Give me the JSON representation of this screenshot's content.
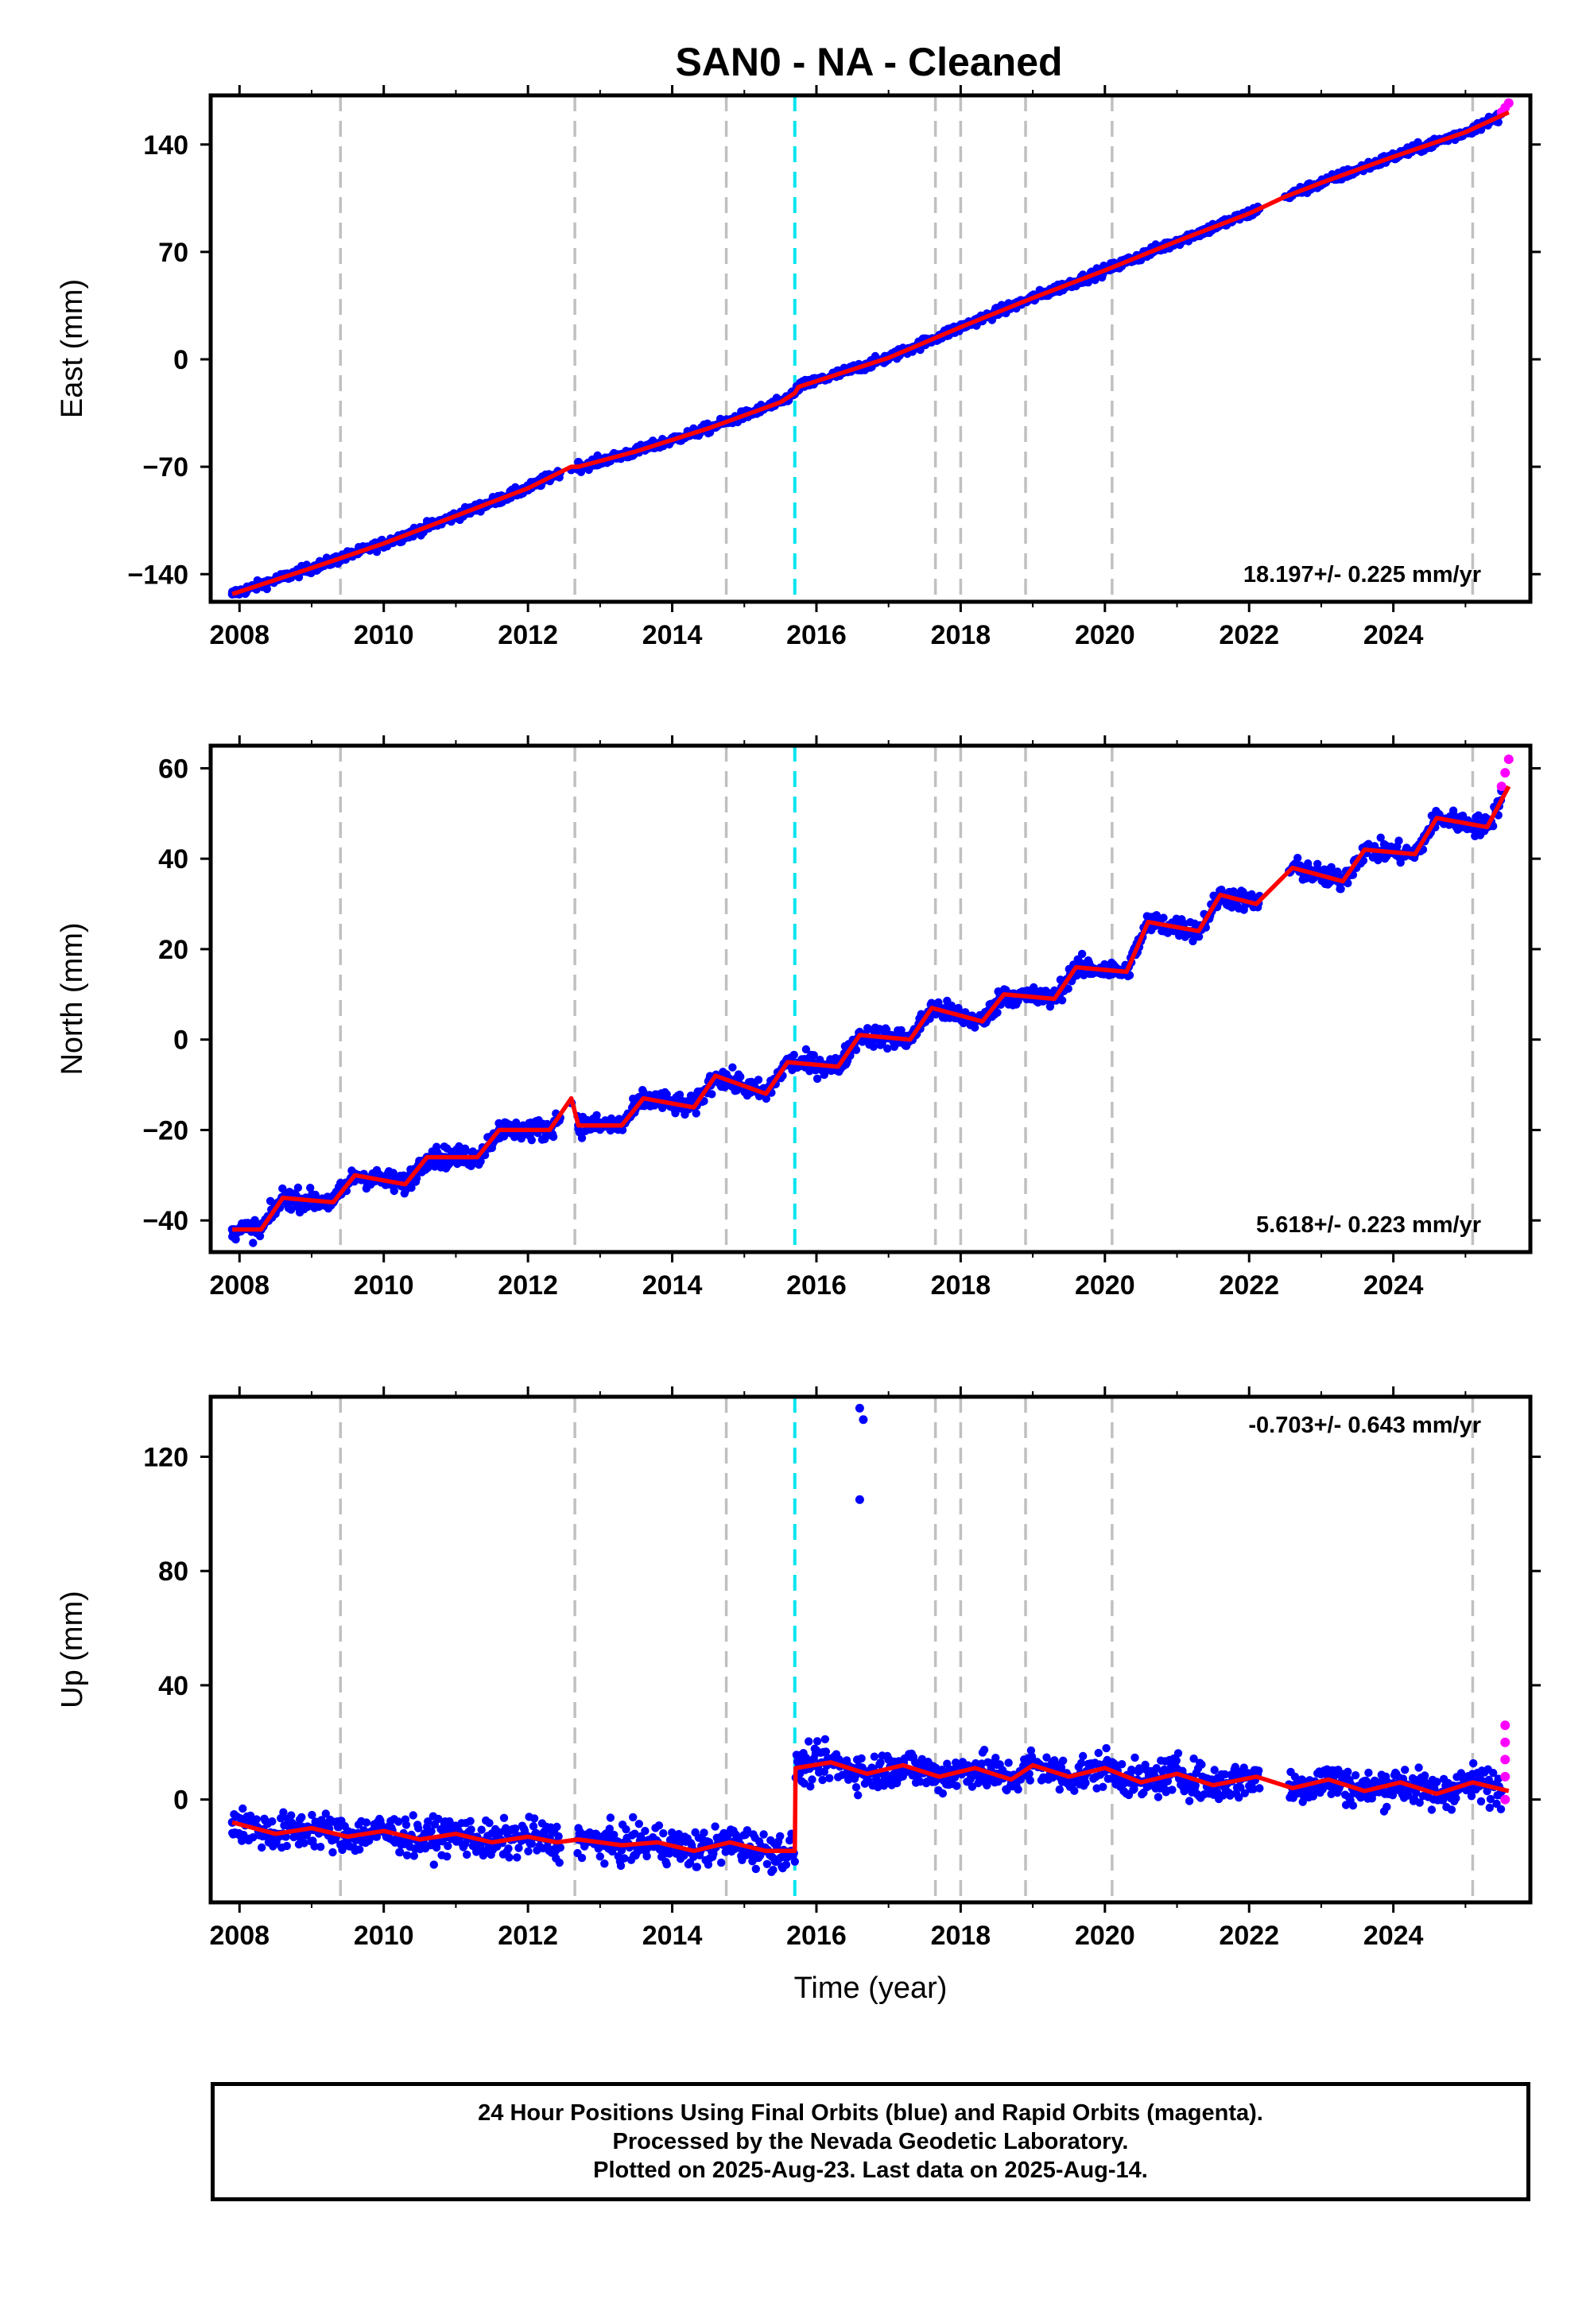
{
  "title": "SAN0  - NA - Cleaned",
  "colors": {
    "final_points": "#0000ff",
    "rapid_points": "#ff00ff",
    "model": "#ff0000",
    "antenna_change": "#c0c0c0",
    "equipment_change": "#00e5ee"
  },
  "footer": {
    "line1": "24 Hour Positions Using Final Orbits (blue) and Rapid Orbits (magenta).",
    "line2": "Processed by the Nevada Geodetic Laboratory.",
    "line3": "Plotted on 2025-Aug-23. Last data on 2025-Aug-14."
  },
  "chart_data": [
    {
      "type": "scatter",
      "ylabel": "East (mm)",
      "xlabel": "",
      "xlim": [
        2007.6,
        2025.9
      ],
      "ylim": [
        -158,
        172
      ],
      "xticks": [
        "2008",
        "2010",
        "2012",
        "2014",
        "2016",
        "2018",
        "2020",
        "2022",
        "2024"
      ],
      "yticks": [
        "140",
        "70",
        "0",
        "−70",
        "−140"
      ],
      "ytick_values": [
        140,
        70,
        0,
        -70,
        -140
      ],
      "rate_label": "18.197+/- 0.225 mm/yr",
      "rate_position": "bottom-right",
      "series": [
        {
          "name": "Final Orbits",
          "color": "blue",
          "x": [
            2007.9,
            2009.0,
            2010.0,
            2011.0,
            2012.0,
            2012.6,
            2012.7,
            2013.5,
            2014.5,
            2015.5,
            2015.7,
            2015.75,
            2017.0,
            2018.0,
            2019.0,
            2020.0,
            2021.0,
            2022.0,
            2022.5,
            2023.0,
            2024.0,
            2025.0,
            2025.5
          ],
          "y": [
            -153,
            -136,
            -120,
            -102,
            -84,
            -72,
            -67,
            -58,
            -45,
            -28,
            -22,
            -18,
            1,
            21,
            40,
            58,
            77,
            95,
            106,
            115,
            132,
            148,
            160
          ]
        },
        {
          "name": "Rapid Orbits",
          "color": "magenta",
          "x": [
            2025.5,
            2025.55,
            2025.6
          ],
          "y": [
            161,
            164,
            167
          ]
        },
        {
          "name": "Model",
          "color": "red",
          "x": [
            2007.9,
            2009.0,
            2010.0,
            2011.0,
            2012.0,
            2012.6,
            2012.7,
            2013.5,
            2014.5,
            2015.5,
            2015.7,
            2015.75,
            2017.0,
            2018.0,
            2019.0,
            2020.0,
            2021.0,
            2022.0,
            2022.5,
            2023.0,
            2024.0,
            2025.0,
            2025.6
          ],
          "y": [
            -153,
            -136,
            -120,
            -102,
            -84,
            -70,
            -70,
            -60,
            -45,
            -28,
            -22,
            -18,
            1,
            21,
            40,
            58,
            77,
            95,
            106,
            115,
            132,
            148,
            161
          ]
        }
      ],
      "vlines_gray": [
        2009.4,
        2012.65,
        2014.75,
        2017.65,
        2018.0,
        2018.9,
        2020.1,
        2025.1
      ],
      "vlines_cyan": [
        2015.7
      ]
    },
    {
      "type": "scatter",
      "ylabel": "North (mm)",
      "xlabel": "",
      "xlim": [
        2007.6,
        2025.9
      ],
      "ylim": [
        -47,
        65
      ],
      "xticks": [
        "2008",
        "2010",
        "2012",
        "2014",
        "2016",
        "2018",
        "2020",
        "2022",
        "2024"
      ],
      "yticks": [
        "60",
        "40",
        "20",
        "0",
        "−20",
        "−40"
      ],
      "ytick_values": [
        60,
        40,
        20,
        0,
        -20,
        -40
      ],
      "rate_label": "5.618+/- 0.223 mm/yr",
      "rate_position": "bottom-right",
      "series": [
        {
          "name": "Final Orbits",
          "color": "blue",
          "x": [
            2007.9,
            2008.3,
            2008.6,
            2009.3,
            2009.6,
            2010.3,
            2010.6,
            2011.3,
            2011.6,
            2012.3,
            2012.6,
            2012.7,
            2013.3,
            2013.6,
            2014.3,
            2014.6,
            2015.3,
            2015.6,
            2016.3,
            2016.6,
            2017.3,
            2017.6,
            2018.3,
            2018.6,
            2019.3,
            2019.6,
            2020.3,
            2020.6,
            2021.3,
            2021.6,
            2022.1,
            2022.6,
            2023.3,
            2023.6,
            2024.3,
            2024.6,
            2025.3,
            2025.5
          ],
          "y": [
            -42,
            -42,
            -35,
            -36,
            -30,
            -32,
            -26,
            -26,
            -20,
            -20,
            -14,
            -19,
            -19,
            -13,
            -15,
            -8,
            -12,
            -5,
            -6,
            1,
            0,
            7,
            4,
            10,
            9,
            16,
            15,
            26,
            24,
            32,
            30,
            38,
            35,
            42,
            41,
            49,
            47,
            55
          ]
        },
        {
          "name": "Rapid Orbits",
          "color": "magenta",
          "x": [
            2025.5,
            2025.55,
            2025.6
          ],
          "y": [
            56,
            59,
            62
          ]
        },
        {
          "name": "Model",
          "color": "red",
          "x": [
            2007.9,
            2008.3,
            2008.6,
            2009.3,
            2009.6,
            2010.3,
            2010.6,
            2011.3,
            2011.6,
            2012.3,
            2012.6,
            2012.7,
            2013.3,
            2013.6,
            2014.3,
            2014.6,
            2015.3,
            2015.6,
            2016.3,
            2016.6,
            2017.3,
            2017.6,
            2018.3,
            2018.6,
            2019.3,
            2019.6,
            2020.3,
            2020.6,
            2021.3,
            2021.6,
            2022.1,
            2022.6,
            2023.3,
            2023.6,
            2024.3,
            2024.6,
            2025.3,
            2025.6
          ],
          "y": [
            -42,
            -42,
            -35,
            -36,
            -30,
            -32,
            -26,
            -26,
            -20,
            -20,
            -13,
            -19,
            -19,
            -13,
            -15,
            -8,
            -12,
            -5,
            -6,
            1,
            0,
            7,
            4,
            10,
            9,
            16,
            15,
            26,
            24,
            32,
            30,
            38,
            35,
            42,
            41,
            49,
            47,
            56
          ]
        }
      ],
      "vlines_gray": [
        2009.4,
        2012.65,
        2014.75,
        2017.65,
        2018.0,
        2018.9,
        2020.1,
        2025.1
      ],
      "vlines_cyan": [
        2015.7
      ]
    },
    {
      "type": "scatter",
      "ylabel": "Up (mm)",
      "xlabel": "Time (year)",
      "xlim": [
        2007.6,
        2025.9
      ],
      "ylim": [
        -36,
        141
      ],
      "xticks": [
        "2008",
        "2010",
        "2012",
        "2014",
        "2016",
        "2018",
        "2020",
        "2022",
        "2024"
      ],
      "yticks": [
        "120",
        "80",
        "40",
        "0"
      ],
      "ytick_values": [
        120,
        80,
        40,
        0
      ],
      "rate_label": "-0.703+/- 0.643 mm/yr",
      "rate_position": "top-right",
      "series": [
        {
          "name": "Final Orbits",
          "color": "blue",
          "x": [
            2007.9,
            2008.5,
            2009.0,
            2009.5,
            2010.0,
            2010.5,
            2011.0,
            2011.5,
            2012.0,
            2012.4,
            2012.7,
            2013.3,
            2013.8,
            2014.3,
            2014.8,
            2015.3,
            2015.65,
            2015.75,
            2016.2,
            2016.7,
            2017.2,
            2017.7,
            2018.2,
            2018.7,
            2019.0,
            2019.5,
            2020.0,
            2020.5,
            2021.0,
            2021.5,
            2022.1,
            2022.6,
            2023.1,
            2023.6,
            2024.1,
            2024.6,
            2025.1,
            2025.5,
            2016.6,
            2016.65,
            2016.6
          ],
          "y": [
            -8,
            -12,
            -10,
            -13,
            -11,
            -14,
            -12,
            -15,
            -13,
            -15,
            -14,
            -16,
            -15,
            -18,
            -15,
            -18,
            -18,
            11,
            13,
            9,
            12,
            8,
            11,
            7,
            12,
            8,
            11,
            6,
            9,
            5,
            8,
            4,
            7,
            3,
            6,
            2,
            6,
            3,
            137,
            133,
            105
          ]
        },
        {
          "name": "Rapid Orbits",
          "color": "magenta",
          "x": [
            2025.55,
            2025.55,
            2025.55,
            2025.55,
            2025.55
          ],
          "y": [
            26,
            20,
            14,
            8,
            0
          ]
        },
        {
          "name": "Model",
          "color": "red",
          "x": [
            2007.9,
            2008.5,
            2009.0,
            2009.5,
            2010.0,
            2010.5,
            2011.0,
            2011.5,
            2012.0,
            2012.4,
            2012.7,
            2013.3,
            2013.8,
            2014.3,
            2014.8,
            2015.3,
            2015.7,
            2015.71,
            2016.2,
            2016.7,
            2017.2,
            2017.7,
            2018.2,
            2018.7,
            2019.0,
            2019.5,
            2020.0,
            2020.5,
            2021.0,
            2021.5,
            2022.1,
            2022.6,
            2023.1,
            2023.6,
            2024.1,
            2024.6,
            2025.1,
            2025.6
          ],
          "y": [
            -8,
            -12,
            -10,
            -13,
            -11,
            -14,
            -12,
            -15,
            -13,
            -15,
            -14,
            -16,
            -15,
            -18,
            -15,
            -18,
            -18,
            11,
            13,
            9,
            12,
            8,
            11,
            7,
            12,
            8,
            11,
            6,
            9,
            5,
            8,
            4,
            7,
            3,
            6,
            2,
            6,
            3
          ]
        }
      ],
      "vlines_gray": [
        2009.4,
        2012.65,
        2014.75,
        2017.65,
        2018.0,
        2018.9,
        2020.1,
        2025.1
      ],
      "vlines_cyan": [
        2015.7
      ]
    }
  ]
}
